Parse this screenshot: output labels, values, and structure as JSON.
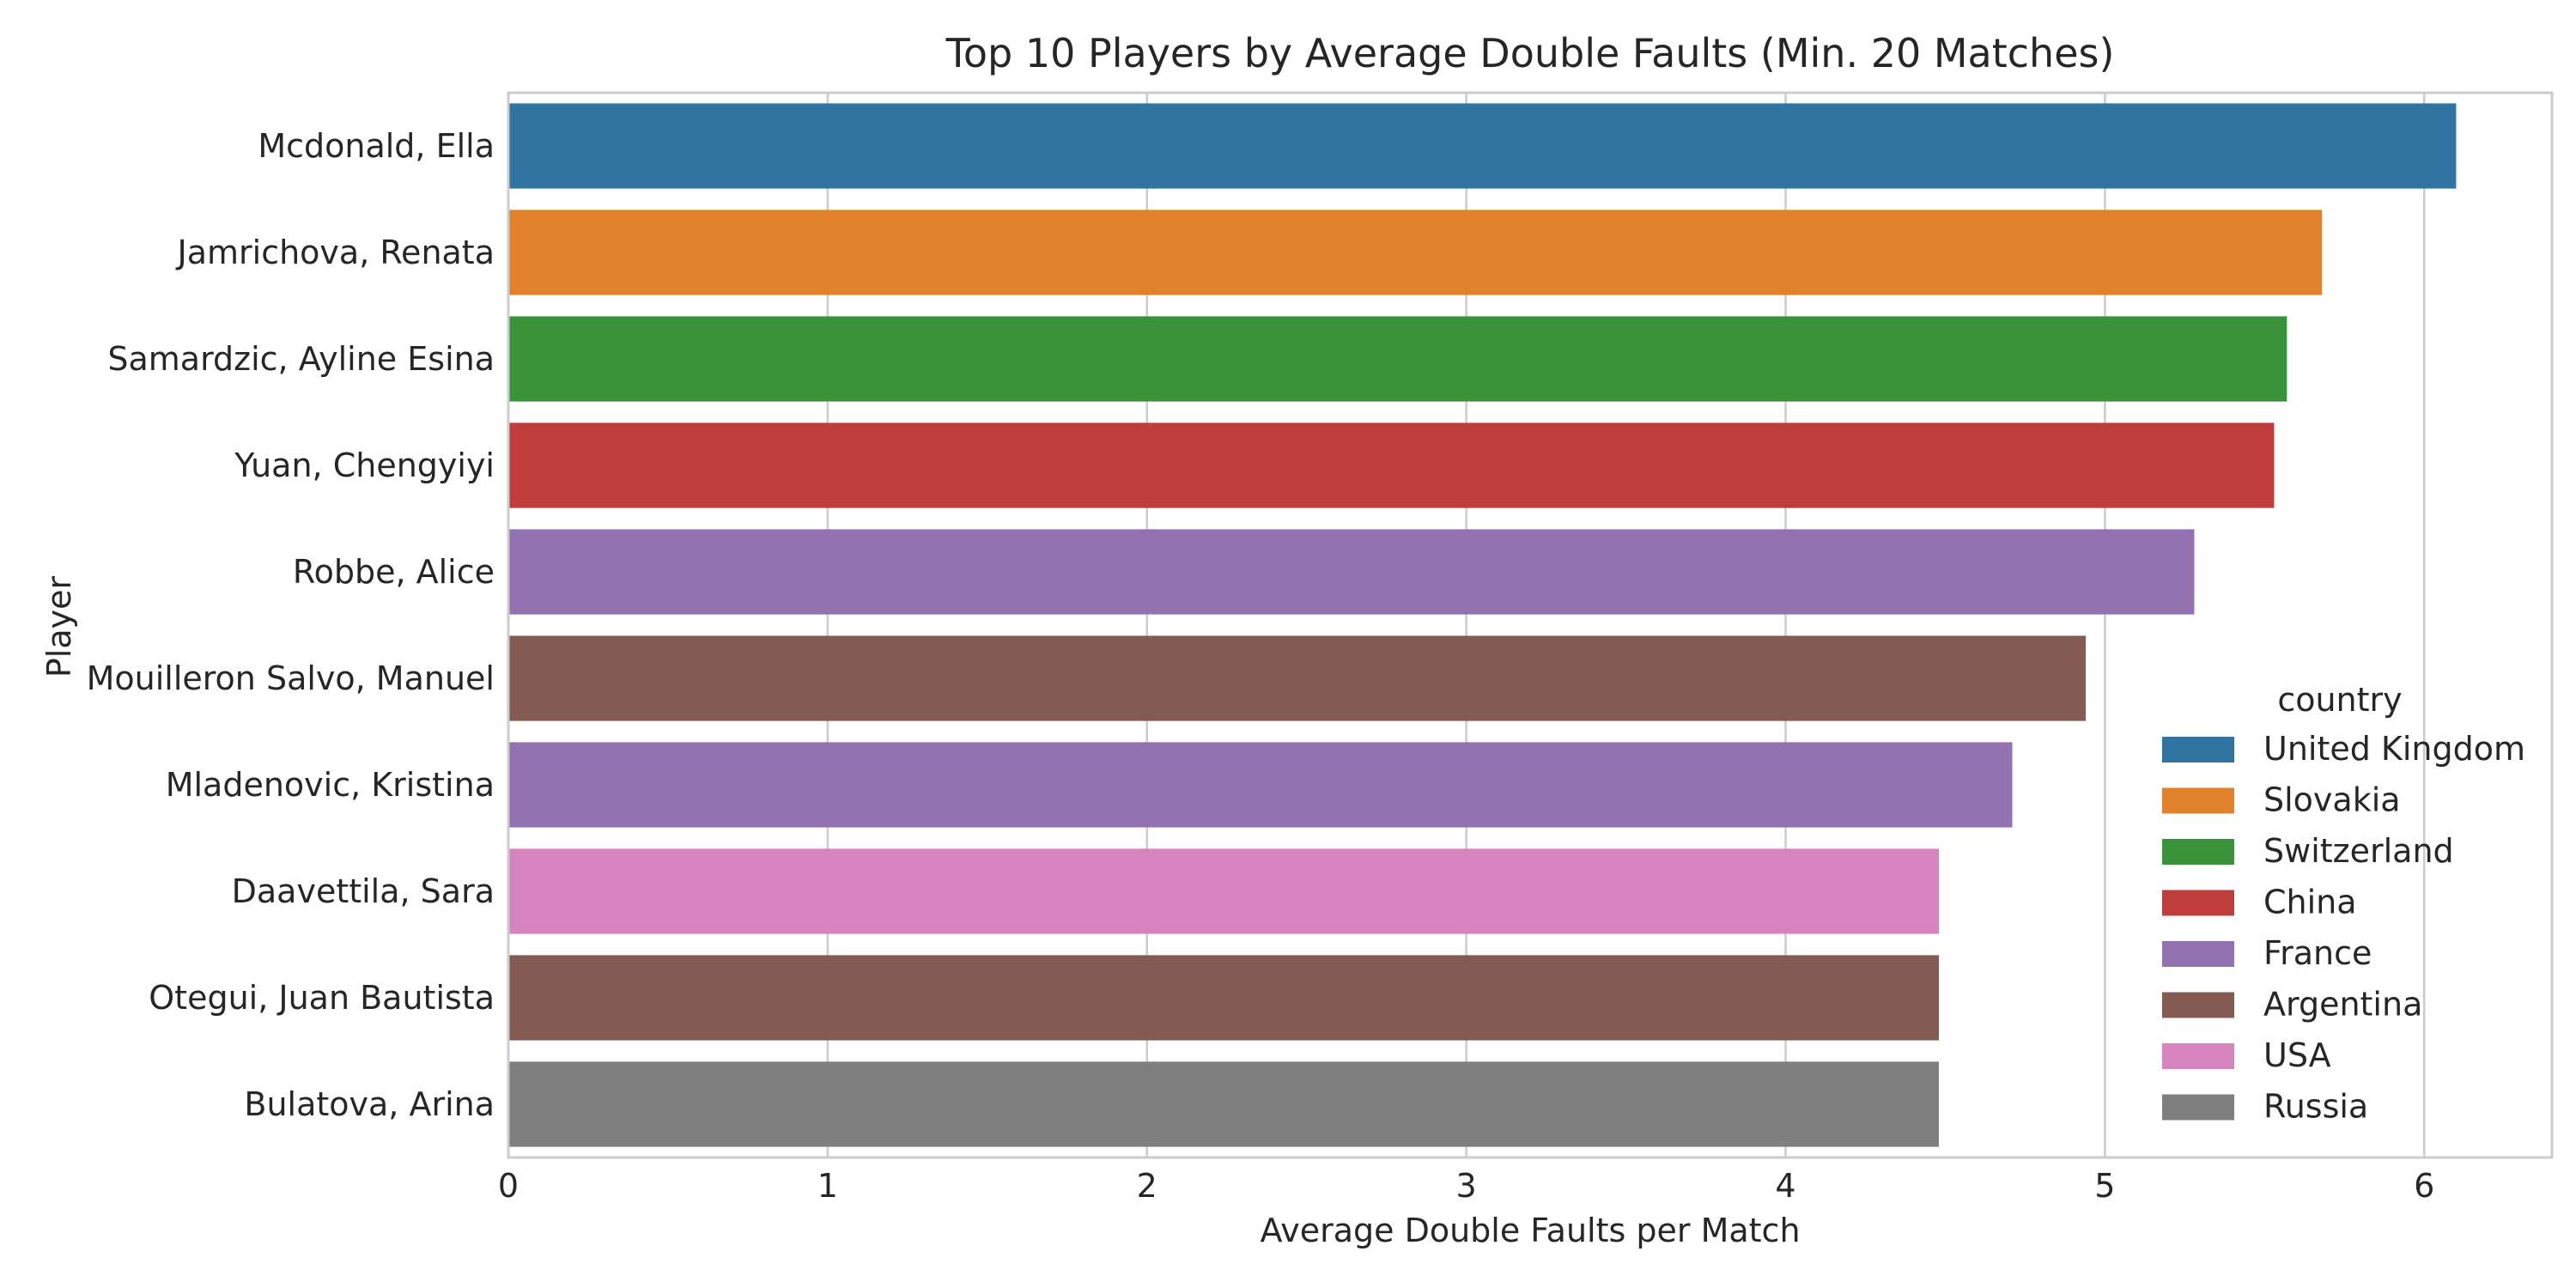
{
  "chart_data": {
    "type": "bar",
    "orientation": "horizontal",
    "title": "Top 10 Players by Average Double Faults (Min. 20 Matches)",
    "xlabel": "Average Double Faults per Match",
    "ylabel": "Player",
    "xlim": [
      0,
      6.4
    ],
    "xticks": [
      0,
      1,
      2,
      3,
      4,
      5,
      6
    ],
    "grid": true,
    "categories": [
      "Mcdonald, Ella",
      "Jamrichova, Renata",
      "Samardzic, Ayline Esina",
      "Yuan, Chengyiyi",
      "Robbe, Alice",
      "Mouilleron Salvo, Manuel",
      "Mladenovic, Kristina",
      "Daavettila, Sara",
      "Otegui, Juan Bautista",
      "Bulatova, Arina"
    ],
    "values": [
      6.1,
      5.68,
      5.57,
      5.53,
      5.28,
      4.94,
      4.71,
      4.48,
      4.48,
      4.48
    ],
    "bar_country": [
      "United Kingdom",
      "Slovakia",
      "Switzerland",
      "China",
      "France",
      "Argentina",
      "France",
      "USA",
      "Argentina",
      "Russia"
    ],
    "legend": {
      "title": "country",
      "placement": "lower-right",
      "entries": [
        {
          "name": "United Kingdom",
          "color": "#3274a1"
        },
        {
          "name": "Slovakia",
          "color": "#e1812c"
        },
        {
          "name": "Switzerland",
          "color": "#3a923a"
        },
        {
          "name": "China",
          "color": "#c03d3e"
        },
        {
          "name": "France",
          "color": "#9372b2"
        },
        {
          "name": "Argentina",
          "color": "#845b53"
        },
        {
          "name": "USA",
          "color": "#d684bd"
        },
        {
          "name": "Russia",
          "color": "#7f7f7f"
        }
      ]
    }
  }
}
